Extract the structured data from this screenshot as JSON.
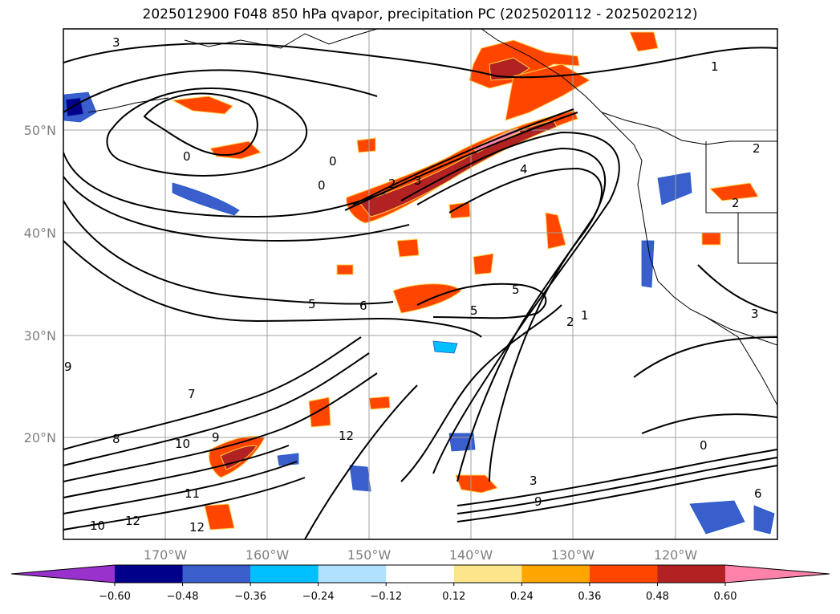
{
  "title": "2025012900 F048 850 hPa qvapor, precipitation PC (2025020112 - 2025020212)",
  "map": {
    "lon_ticks": [
      "170°W",
      "160°W",
      "150°W",
      "140°W",
      "130°W",
      "120°W"
    ],
    "lat_ticks": [
      "50°N",
      "40°N",
      "30°N",
      "20°N"
    ],
    "contour_labels": [
      {
        "text": "3",
        "id": "c3a"
      },
      {
        "text": "0",
        "id": "c0a"
      },
      {
        "text": "0",
        "id": "c0b"
      },
      {
        "text": "0",
        "id": "c0c"
      },
      {
        "text": "2",
        "id": "c2a"
      },
      {
        "text": "3",
        "id": "c3b"
      },
      {
        "text": "4",
        "id": "c4a"
      },
      {
        "text": "1",
        "id": "c1a"
      },
      {
        "text": "2",
        "id": "c2b"
      },
      {
        "text": "2",
        "id": "c2c"
      },
      {
        "text": "3",
        "id": "c3c"
      },
      {
        "text": "5",
        "id": "c5a"
      },
      {
        "text": "6",
        "id": "c6a"
      },
      {
        "text": "5",
        "id": "c5b"
      },
      {
        "text": "5",
        "id": "c5c"
      },
      {
        "text": "2",
        "id": "c2d"
      },
      {
        "text": "1",
        "id": "c1b"
      },
      {
        "text": "7",
        "id": "c7a"
      },
      {
        "text": "10",
        "id": "c10a"
      },
      {
        "text": "9",
        "id": "c9a"
      },
      {
        "text": "8",
        "id": "c8a"
      },
      {
        "text": "12",
        "id": "c12a"
      },
      {
        "text": "11",
        "id": "c11a"
      },
      {
        "text": "12",
        "id": "c12b"
      },
      {
        "text": "12",
        "id": "c12c"
      },
      {
        "text": "10",
        "id": "c10b"
      },
      {
        "text": "3",
        "id": "c3d"
      },
      {
        "text": "9",
        "id": "c9b"
      },
      {
        "text": "0",
        "id": "c0d"
      },
      {
        "text": "6",
        "id": "c6b"
      },
      {
        "text": "9",
        "id": "c9c"
      }
    ]
  },
  "colorbar": {
    "colors": [
      "#9932cc",
      "#00008b",
      "#3a5fcd",
      "#00bfff",
      "#b0e2ff",
      "#ffffff",
      "#fde68a",
      "#ffa500",
      "#ff4500",
      "#b22222",
      "#ff82ab"
    ],
    "ticks": [
      "−0.60",
      "−0.48",
      "−0.36",
      "−0.24",
      "−0.12",
      "0.12",
      "0.24",
      "0.36",
      "0.48",
      "0.60"
    ]
  }
}
